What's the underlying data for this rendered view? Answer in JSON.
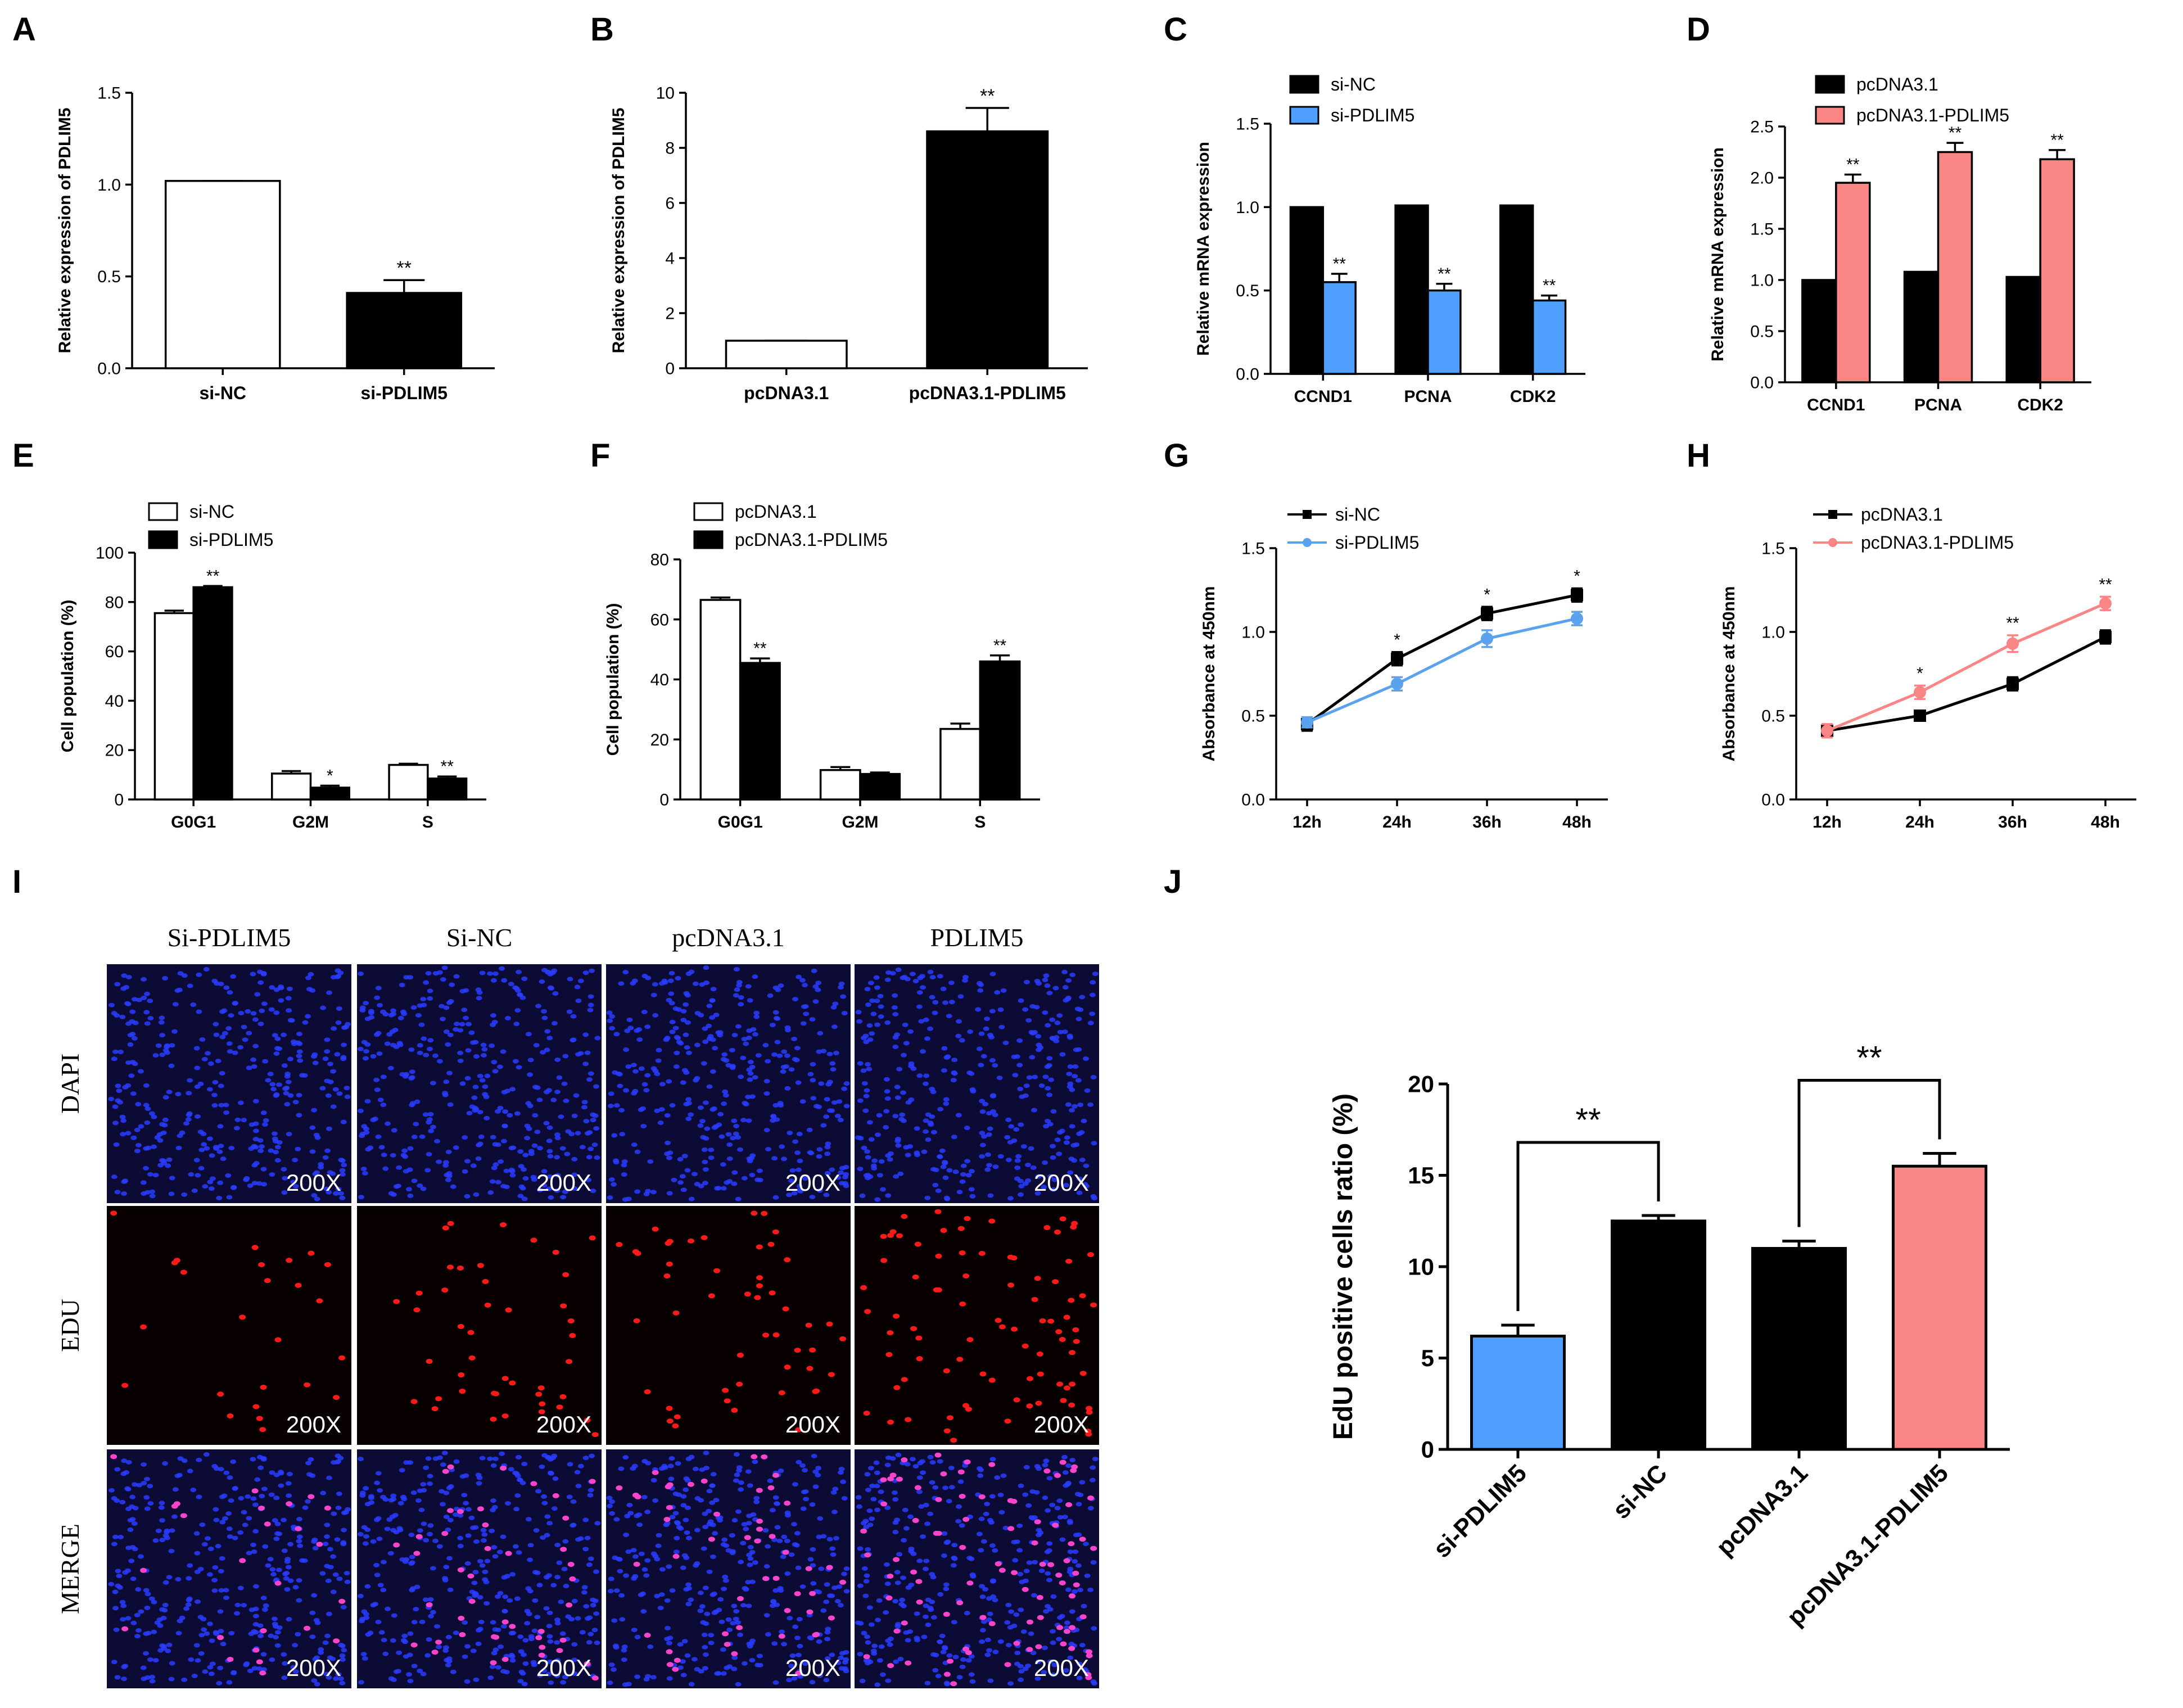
{
  "colors": {
    "black": "#000000",
    "white": "#ffffff",
    "blue": "#4f9fff",
    "line_blue": "#5aa2ee",
    "pink": "#f98585",
    "dapi_bg": "#0b0b35",
    "dapi_cell": "#2a3cff",
    "edu_bg": "#080000",
    "edu_cell": "#ff1a1a",
    "merge_cell": "#ff44cc"
  },
  "panels": {
    "A": {
      "letter": "A"
    },
    "B": {
      "letter": "B"
    },
    "C": {
      "letter": "C"
    },
    "D": {
      "letter": "D"
    },
    "E": {
      "letter": "E"
    },
    "F": {
      "letter": "F"
    },
    "G": {
      "letter": "G"
    },
    "H": {
      "letter": "H"
    },
    "I": {
      "letter": "I"
    },
    "J": {
      "letter": "J"
    }
  },
  "chart_data": [
    {
      "id": "A",
      "type": "bar",
      "title": "",
      "categories": [
        "si-NC",
        "si-PDLIM5"
      ],
      "values": [
        1.02,
        0.41
      ],
      "errors": [
        0.0,
        0.07
      ],
      "fills": [
        "#ffffff",
        "#000000"
      ],
      "significance": [
        "",
        "**"
      ],
      "ylabel": "Relative expression of PDLIM5",
      "ylim": [
        0,
        1.5
      ],
      "ticks": [
        "0.0",
        "0.5",
        "1.0",
        "1.5"
      ]
    },
    {
      "id": "B",
      "type": "bar",
      "title": "",
      "categories": [
        "pcDNA3.1",
        "pcDNA3.1-PDLIM5"
      ],
      "values": [
        1.0,
        8.6
      ],
      "errors": [
        0.0,
        0.85
      ],
      "fills": [
        "#ffffff",
        "#000000"
      ],
      "significance": [
        "",
        "**"
      ],
      "ylabel": "Relative expression of PDLIM5",
      "ylim": [
        0,
        10
      ],
      "ticks": [
        "0",
        "2",
        "4",
        "6",
        "8",
        "10"
      ]
    },
    {
      "id": "C",
      "type": "bar",
      "title": "",
      "categories": [
        "CCND1",
        "PCNA",
        "CDK2"
      ],
      "series": [
        {
          "name": "si-NC",
          "values": [
            1.0,
            1.01,
            1.01
          ],
          "errors": [
            0,
            0,
            0
          ],
          "significance": [
            "",
            "",
            ""
          ],
          "color": "#000000"
        },
        {
          "name": "si-PDLIM5",
          "values": [
            0.55,
            0.5,
            0.44
          ],
          "errors": [
            0.05,
            0.04,
            0.03
          ],
          "significance": [
            "**",
            "**",
            "**"
          ],
          "color": "#4f9fff"
        }
      ],
      "legend_position": "top-left",
      "ylabel": "Relative mRNA expression",
      "ylim": [
        0,
        1.5
      ],
      "ticks": [
        "0.0",
        "0.5",
        "1.0",
        "1.5"
      ]
    },
    {
      "id": "D",
      "type": "bar",
      "title": "",
      "categories": [
        "CCND1",
        "PCNA",
        "CDK2"
      ],
      "series": [
        {
          "name": "pcDNA3.1",
          "values": [
            1.0,
            1.08,
            1.03
          ],
          "errors": [
            0,
            0,
            0
          ],
          "significance": [
            "",
            "",
            ""
          ],
          "color": "#000000"
        },
        {
          "name": "pcDNA3.1-PDLIM5",
          "values": [
            1.95,
            2.25,
            2.18
          ],
          "errors": [
            0.08,
            0.09,
            0.09
          ],
          "significance": [
            "**",
            "**",
            "**"
          ],
          "color": "#f98585"
        }
      ],
      "legend_position": "top-left",
      "ylabel": "Relative mRNA expression",
      "ylim": [
        0,
        2.5
      ],
      "ticks": [
        "0.0",
        "0.5",
        "1.0",
        "1.5",
        "2.0",
        "2.5"
      ]
    },
    {
      "id": "E",
      "type": "bar",
      "title": "",
      "categories": [
        "G0G1",
        "G2M",
        "S"
      ],
      "series": [
        {
          "name": "si-NC",
          "values": [
            75.5,
            10.5,
            14.0
          ],
          "errors": [
            1.0,
            1.0,
            0.5
          ],
          "significance": [
            "",
            "",
            ""
          ],
          "color": "#ffffff"
        },
        {
          "name": "si-PDLIM5",
          "values": [
            86.0,
            4.8,
            8.5
          ],
          "errors": [
            0.5,
            0.8,
            0.8
          ],
          "significance": [
            "**",
            "*",
            "**"
          ],
          "color": "#000000"
        }
      ],
      "legend_position": "top-left",
      "ylabel": "Cell population (%)",
      "ylim": [
        0,
        100
      ],
      "ticks": [
        "0",
        "20",
        "40",
        "60",
        "80",
        "100"
      ]
    },
    {
      "id": "F",
      "type": "bar",
      "title": "",
      "categories": [
        "G0G1",
        "G2M",
        "S"
      ],
      "series": [
        {
          "name": "pcDNA3.1",
          "values": [
            66.5,
            9.8,
            23.5
          ],
          "errors": [
            0.8,
            1.0,
            1.8
          ],
          "significance": [
            "",
            "",
            ""
          ],
          "color": "#ffffff"
        },
        {
          "name": "pcDNA3.1-PDLIM5",
          "values": [
            45.5,
            8.5,
            46.0
          ],
          "errors": [
            1.5,
            0.5,
            2.0
          ],
          "significance": [
            "**",
            "",
            "**"
          ],
          "color": "#000000"
        }
      ],
      "legend_position": "top-left",
      "ylabel": "Cell population (%)",
      "ylim": [
        0,
        80
      ],
      "ticks": [
        "0",
        "20",
        "40",
        "60",
        "80"
      ]
    },
    {
      "id": "G",
      "type": "line",
      "title": "",
      "x": [
        "12h",
        "24h",
        "36h",
        "48h"
      ],
      "series": [
        {
          "name": "si-NC",
          "values": [
            0.45,
            0.84,
            1.11,
            1.22
          ],
          "errors": [
            0.04,
            0.04,
            0.04,
            0.04
          ],
          "color": "#000000",
          "marker": "square"
        },
        {
          "name": "si-PDLIM5",
          "values": [
            0.46,
            0.69,
            0.96,
            1.08
          ],
          "errors": [
            0.03,
            0.04,
            0.05,
            0.04
          ],
          "color": "#5aa2ee",
          "marker": "circle"
        }
      ],
      "significance": [
        "",
        "*",
        "*",
        "*"
      ],
      "legend_position": "top-left",
      "ylabel": "Absorbance at 450nm",
      "ylim": [
        0,
        1.5
      ],
      "ticks": [
        "0.0",
        "0.5",
        "1.0",
        "1.5"
      ]
    },
    {
      "id": "H",
      "type": "line",
      "title": "",
      "x": [
        "12h",
        "24h",
        "36h",
        "48h"
      ],
      "series": [
        {
          "name": "pcDNA3.1",
          "values": [
            0.41,
            0.5,
            0.69,
            0.97
          ],
          "errors": [
            0.03,
            0.03,
            0.04,
            0.04
          ],
          "color": "#000000",
          "marker": "square"
        },
        {
          "name": "pcDNA3.1-PDLIM5",
          "values": [
            0.41,
            0.64,
            0.93,
            1.17
          ],
          "errors": [
            0.04,
            0.04,
            0.05,
            0.04
          ],
          "color": "#f98585",
          "marker": "circle"
        }
      ],
      "significance": [
        "",
        "*",
        "**",
        "**"
      ],
      "legend_position": "top-left",
      "ylabel": "Absorbance at 450nm",
      "ylim": [
        0,
        1.5
      ],
      "ticks": [
        "0.0",
        "0.5",
        "1.0",
        "1.5"
      ]
    },
    {
      "id": "J",
      "type": "bar",
      "title": "",
      "categories": [
        "si-PDLIM5",
        "si-NC",
        "pcDNA3.1",
        "pcDNA3.1-PDLIM5"
      ],
      "values": [
        6.2,
        12.5,
        11.0,
        15.5
      ],
      "errors": [
        0.6,
        0.3,
        0.4,
        0.7
      ],
      "fills": [
        "#4f9fff",
        "#000000",
        "#000000",
        "#f98585"
      ],
      "comparisons": [
        {
          "from": 0,
          "to": 1,
          "label": "**"
        },
        {
          "from": 2,
          "to": 3,
          "label": "**"
        }
      ],
      "ylabel": "EdU positive cells ratio (%)",
      "ylim": [
        0,
        20
      ],
      "ticks": [
        "0",
        "5",
        "10",
        "15",
        "20"
      ]
    }
  ],
  "microscopy": {
    "columns": [
      "Si-PDLIM5",
      "Si-NC",
      "pcDNA3.1",
      "PDLIM5"
    ],
    "rows": [
      "DAPI",
      "EDU",
      "MERGE"
    ],
    "magnification": "200X",
    "edu_density": [
      0.45,
      0.8,
      0.9,
      1.6
    ]
  }
}
